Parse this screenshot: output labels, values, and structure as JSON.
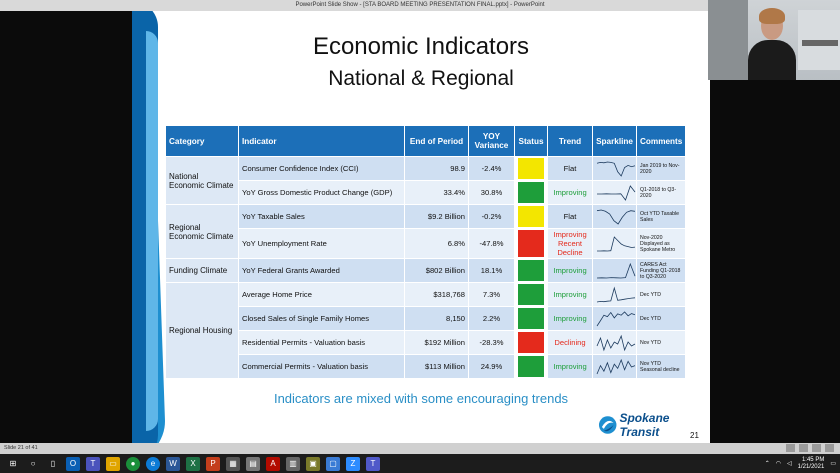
{
  "window": {
    "title": "PowerPoint Slide Show - [STA BOARD MEETING PRESENTATION FINAL.pptx] - PowerPoint",
    "minimize": "—",
    "maximize": "▢",
    "close": "✕"
  },
  "slide": {
    "title": "Economic Indicators",
    "subtitle": "National & Regional",
    "headers": {
      "category": "Category",
      "indicator": "Indicator",
      "end_of_period": "End of Period",
      "yoy_variance": "YOY Variance",
      "status": "Status",
      "trend": "Trend",
      "sparkline": "Sparkline",
      "comments": "Comments"
    },
    "categories": [
      {
        "label": "National Economic Climate",
        "rows": 2
      },
      {
        "label": "Regional Economic Climate",
        "rows": 2
      },
      {
        "label": "Funding Climate",
        "rows": 1
      },
      {
        "label": "Regional Housing",
        "rows": 4
      }
    ],
    "rows": [
      {
        "indicator": "Consumer Confidence Index (CCI)",
        "end": "98.9",
        "yoy": "-2.4%",
        "status": "#f3e600",
        "trend": "Flat",
        "trend_color": "#111111",
        "comment": "Jan 2019 to Nov-2020",
        "spark": [
          50,
          52,
          51,
          53,
          52,
          50,
          30,
          20,
          40,
          45,
          42,
          44
        ]
      },
      {
        "indicator": "YoY Gross Domestic Product Change (GDP)",
        "end": "33.4%",
        "yoy": "30.8%",
        "status": "#1e9e3a",
        "trend": "Improving",
        "trend_color": "#1e9e3a",
        "comment": "Q1-2018 to Q3-2020",
        "spark": [
          40,
          40,
          41,
          40,
          40,
          41,
          10,
          80,
          50
        ]
      },
      {
        "indicator": "YoY Taxable Sales",
        "end": "$9.2 Billion",
        "yoy": "-0.2%",
        "status": "#f3e600",
        "trend": "Flat",
        "trend_color": "#111111",
        "comment": "Oct YTD Taxable Sales",
        "spark": [
          60,
          62,
          58,
          50,
          30,
          20,
          40,
          55,
          60,
          58
        ]
      },
      {
        "indicator": "YoY Unemployment Rate",
        "end": "6.8%",
        "yoy": "-47.8%",
        "status": "#e42a1c",
        "trend": "Improving\nRecent\nDecline",
        "trend_color": "#e42a1c",
        "comment": "Nov-2020 Displayed as Spokane Metro",
        "spark": [
          10,
          10,
          11,
          10,
          12,
          90,
          70,
          50,
          40,
          35,
          30,
          32
        ]
      },
      {
        "indicator": "YoY Federal Grants Awarded",
        "end": "$802 Billion",
        "yoy": "18.1%",
        "status": "#1e9e3a",
        "trend": "Improving",
        "trend_color": "#1e9e3a",
        "comment": "CARES Act Funding Q1-2018 to Q3-2020",
        "spark": [
          20,
          21,
          20,
          22,
          21,
          20,
          22,
          95,
          30
        ]
      },
      {
        "indicator": "Average Home Price",
        "end": "$318,768",
        "yoy": "7.3%",
        "status": "#1e9e3a",
        "trend": "Improving",
        "trend_color": "#1e9e3a",
        "comment": "Dec YTD",
        "spark": [
          30,
          32,
          31,
          33,
          34,
          80,
          36,
          38,
          40,
          42,
          44,
          45
        ]
      },
      {
        "indicator": "Closed Sales of Single Family Homes",
        "end": "8,150",
        "yoy": "2.2%",
        "status": "#1e9e3a",
        "trend": "Improving",
        "trend_color": "#1e9e3a",
        "comment": "Dec YTD",
        "spark": [
          20,
          40,
          60,
          55,
          70,
          50,
          65,
          60,
          72,
          58,
          66,
          62
        ]
      },
      {
        "indicator": "Residential Permits - Valuation basis",
        "end": "$192 Million",
        "yoy": "-28.3%",
        "status": "#e42a1c",
        "trend": "Declining",
        "trend_color": "#e42a1c",
        "comment": "Nov YTD",
        "spark": [
          50,
          70,
          40,
          65,
          45,
          60,
          55,
          75,
          40,
          60,
          50,
          55
        ]
      },
      {
        "indicator": "Commercial Permits - Valuation basis",
        "end": "$113 Million",
        "yoy": "24.9%",
        "status": "#1e9e3a",
        "trend": "Improving",
        "trend_color": "#1e9e3a",
        "comment": "Nov YTD Seasonal decline",
        "spark": [
          30,
          60,
          40,
          70,
          35,
          65,
          50,
          80,
          45,
          75,
          55,
          60
        ]
      }
    ],
    "footer_text": "Indicators are mixed with some encouraging trends",
    "logo_text": "Spokane Transit",
    "page_number": "21"
  },
  "statusbar": {
    "text": "Slide 21 of 41"
  },
  "taskbar": {
    "time": "1:45 PM",
    "date": "1/21/2021"
  },
  "colors": {
    "header_bg": "#1c6fb8",
    "accent_text": "#2a8fc6"
  }
}
